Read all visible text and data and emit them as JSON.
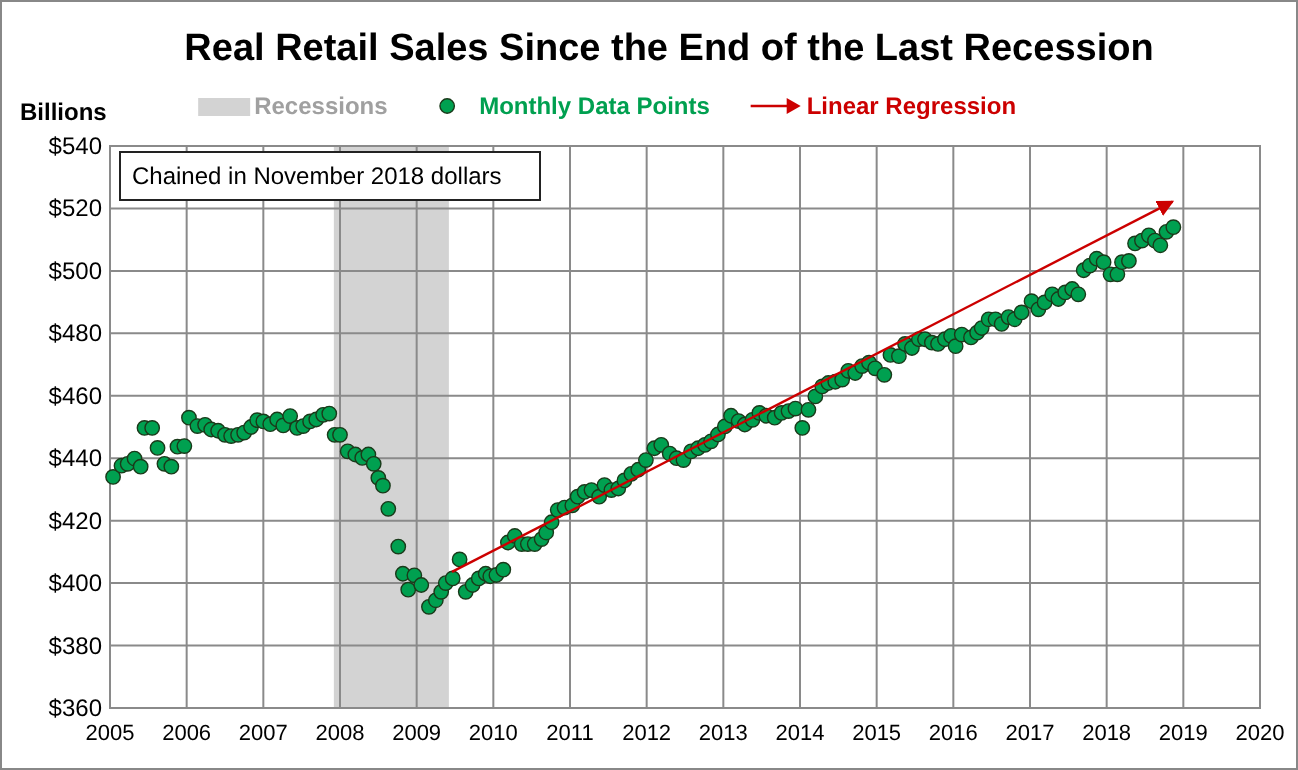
{
  "chart_data": {
    "type": "scatter",
    "title": "Real  Retail Sales Since the End of the Last Recession",
    "ylabel": "Billions",
    "annotations": [
      "Chained  in November 2018 dollars"
    ],
    "xlim": [
      2005,
      2020
    ],
    "xticks": [
      2005,
      2006,
      2007,
      2008,
      2009,
      2010,
      2011,
      2012,
      2013,
      2014,
      2015,
      2016,
      2017,
      2018,
      2019,
      2020
    ],
    "ylim": [
      360,
      540
    ],
    "yticks": [
      {
        "value": 360,
        "label": "$360"
      },
      {
        "value": 380,
        "label": "$380"
      },
      {
        "value": 400,
        "label": "$400"
      },
      {
        "value": 420,
        "label": "$420"
      },
      {
        "value": 440,
        "label": "$440"
      },
      {
        "value": 460,
        "label": "$460"
      },
      {
        "value": 480,
        "label": "$480"
      },
      {
        "value": 500,
        "label": "$500"
      },
      {
        "value": 520,
        "label": "$520"
      },
      {
        "value": 540,
        "label": "$540"
      }
    ],
    "grid": true,
    "legend": "top",
    "bands": [
      {
        "axis": "x",
        "from": 2007.92,
        "to": 2009.42,
        "label": "Recessions",
        "color": "#d3d3d3"
      }
    ],
    "series": [
      {
        "name": "Monthly Data Points",
        "marker": "circle",
        "color": "#00a050",
        "x": [
          2005.04,
          2005.15,
          2005.23,
          2005.32,
          2005.4,
          2005.45,
          2005.55,
          2005.62,
          2005.71,
          2005.8,
          2005.88,
          2005.97,
          2006.03,
          2006.14,
          2006.24,
          2006.32,
          2006.41,
          2006.5,
          2006.58,
          2006.67,
          2006.75,
          2006.84,
          2006.92,
          2007.0,
          2007.09,
          2007.18,
          2007.26,
          2007.35,
          2007.44,
          2007.52,
          2007.61,
          2007.69,
          2007.78,
          2007.86,
          2007.93,
          2008.0,
          2008.1,
          2008.2,
          2008.29,
          2008.37,
          2008.44,
          2008.5,
          2008.56,
          2008.63,
          2008.76,
          2008.82,
          2008.89,
          2008.97,
          2009.06,
          2009.16,
          2009.25,
          2009.32,
          2009.38,
          2009.47,
          2009.56,
          2009.64,
          2009.73,
          2009.81,
          2009.9,
          2009.96,
          2010.04,
          2010.13,
          2010.19,
          2010.28,
          2010.37,
          2010.45,
          2010.54,
          2010.63,
          2010.69,
          2010.76,
          2010.84,
          2010.93,
          2011.03,
          2011.1,
          2011.19,
          2011.28,
          2011.38,
          2011.45,
          2011.54,
          2011.63,
          2011.71,
          2011.8,
          2011.89,
          2011.99,
          2012.1,
          2012.19,
          2012.3,
          2012.39,
          2012.48,
          2012.58,
          2012.67,
          2012.76,
          2012.84,
          2012.93,
          2013.02,
          2013.1,
          2013.2,
          2013.28,
          2013.38,
          2013.47,
          2013.56,
          2013.67,
          2013.76,
          2013.85,
          2013.94,
          2014.03,
          2014.11,
          2014.2,
          2014.29,
          2014.37,
          2014.46,
          2014.55,
          2014.63,
          2014.72,
          2014.81,
          2014.9,
          2014.98,
          2015.1,
          2015.18,
          2015.29,
          2015.37,
          2015.46,
          2015.55,
          2015.63,
          2015.72,
          2015.8,
          2015.89,
          2015.97,
          2016.03,
          2016.11,
          2016.23,
          2016.31,
          2016.37,
          2016.46,
          2016.55,
          2016.63,
          2016.72,
          2016.8,
          2016.89,
          2017.02,
          2017.11,
          2017.19,
          2017.29,
          2017.37,
          2017.46,
          2017.55,
          2017.63,
          2017.7,
          2017.78,
          2017.87,
          2017.96,
          2018.05,
          2018.14,
          2018.2,
          2018.29,
          2018.37,
          2018.46,
          2018.55,
          2018.63,
          2018.7,
          2018.78,
          2018.87
        ],
        "values": [
          434,
          437.6,
          438.2,
          439.9,
          437.3,
          449.7,
          449.7,
          443.3,
          438.2,
          437.3,
          443.7,
          443.9,
          453,
          450.3,
          450.7,
          449.2,
          448.8,
          447.5,
          447.1,
          447.5,
          448.2,
          450,
          452.2,
          451.8,
          450.9,
          452.4,
          450.5,
          453.5,
          449.7,
          450.3,
          451.8,
          452.4,
          453.9,
          454.3,
          447.5,
          447.5,
          442.2,
          441.2,
          440.1,
          441.2,
          438.2,
          433.7,
          431.2,
          423.8,
          411.7,
          403,
          397.9,
          402.5,
          399.4,
          392.4,
          394.5,
          397.2,
          400,
          401.5,
          407.6,
          397.2,
          399.4,
          401.5,
          403,
          402.2,
          402.6,
          404.3,
          413,
          415.1,
          412.5,
          412.5,
          412.5,
          414.1,
          416.2,
          419.5,
          423.4,
          424.2,
          424.9,
          427.7,
          429.2,
          429.8,
          427.7,
          431.4,
          429.8,
          430.3,
          432.9,
          435,
          436.3,
          439.4,
          443.2,
          444.3,
          441.5,
          440,
          439.4,
          442.2,
          443.2,
          444.3,
          445.4,
          447.6,
          450.2,
          453.6,
          451.9,
          450.8,
          452.3,
          454.5,
          453.6,
          453,
          454.5,
          455.1,
          455.9,
          449.7,
          455.5,
          459.8,
          463,
          464.1,
          464.5,
          465.2,
          468,
          467.3,
          469.5,
          470.6,
          468.8,
          466.7,
          473.1,
          472.7,
          476.6,
          475.3,
          478.1,
          478.1,
          477,
          476.6,
          478.1,
          479.2,
          475.9,
          479.6,
          478.7,
          480.2,
          481.7,
          484.5,
          484.5,
          483,
          485.2,
          484.5,
          486.7,
          490.3,
          487.7,
          489.9,
          492.5,
          491,
          493.1,
          494.2,
          492.5,
          500.2,
          501.7,
          503.9,
          502.8,
          498.9,
          498.9,
          502.8,
          503.2,
          508.8,
          509.7,
          511.4,
          509.7,
          508.2,
          512.5,
          514
        ]
      },
      {
        "name": "Linear Regression",
        "type": "line",
        "marker": "none",
        "color": "#cc0000",
        "x": [
          2009.46,
          2018.86
        ],
        "values": [
          403.6,
          522.2
        ]
      }
    ]
  }
}
